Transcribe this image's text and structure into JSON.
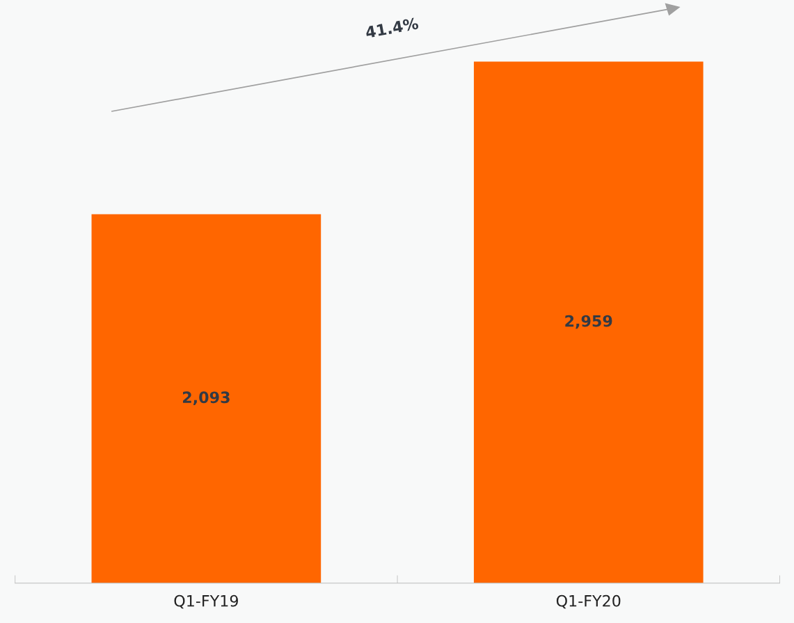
{
  "chart_data": {
    "type": "bar",
    "categories": [
      "Q1-FY19",
      "Q1-FY20"
    ],
    "values": [
      2093,
      2959
    ],
    "color": "#ff6600",
    "value_labels": [
      "2,093",
      "2,959"
    ],
    "grid": false,
    "annotations": [
      "41.4%"
    ]
  }
}
